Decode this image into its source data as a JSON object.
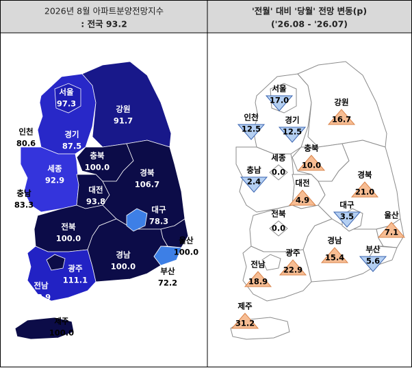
{
  "left_panel": {
    "title": "2026년 8월 아파트분양전망지수",
    "subtitle": ": 전국  93.2",
    "regions": [
      {
        "key": "gangwon",
        "name": "강원",
        "value": "91.7",
        "color": "#18188a",
        "text_color": "#ffffff"
      },
      {
        "key": "gyeonggi",
        "name": "경기",
        "value": "87.5",
        "color": "#2828c8",
        "text_color": "#ffffff"
      },
      {
        "key": "seoul",
        "name": "서울",
        "value": "97.3",
        "color": "#1e1eb4",
        "text_color": "#ffffff"
      },
      {
        "key": "incheon",
        "name": "인천",
        "value": "80.6",
        "color": "#3535d8",
        "text_color": "#000000"
      },
      {
        "key": "chungbuk",
        "name": "충북",
        "value": "100.0",
        "color": "#0c0c48",
        "text_color": "#ffffff"
      },
      {
        "key": "sejong",
        "name": "세종",
        "value": "92.9",
        "color": "#3434dc",
        "text_color": "#ffffff"
      },
      {
        "key": "chungnam",
        "name": "충남",
        "value": "83.3",
        "color": "#3434dc",
        "text_color": "#000000"
      },
      {
        "key": "daejeon",
        "name": "대전",
        "value": "93.8",
        "color": "#0c0c48",
        "text_color": "#ffffff"
      },
      {
        "key": "gyeongbuk",
        "name": "경북",
        "value": "106.7",
        "color": "#0c0c48",
        "text_color": "#ffffff"
      },
      {
        "key": "daegu",
        "name": "대구",
        "value": "78.3",
        "color": "#3d7fe6",
        "text_color": "#ffffff"
      },
      {
        "key": "jeonbuk",
        "name": "전북",
        "value": "100.0",
        "color": "#0c0c48",
        "text_color": "#ffffff"
      },
      {
        "key": "ulsan",
        "name": "울산",
        "value": "100.0",
        "color": "#0c0c48",
        "text_color": "#000000"
      },
      {
        "key": "gyeongnam",
        "name": "경남",
        "value": "100.0",
        "color": "#0c0c48",
        "text_color": "#ffffff"
      },
      {
        "key": "busan",
        "name": "부산",
        "value": "72.2",
        "color": "#3d7fe6",
        "text_color": "#000000"
      },
      {
        "key": "gwangju",
        "name": "광주",
        "value": "111.1",
        "color": "#0c0c48",
        "text_color": "#ffffff"
      },
      {
        "key": "jeonnam",
        "name": "전남",
        "value": "88.9",
        "color": "#2222c4",
        "text_color": "#ffffff"
      },
      {
        "key": "jeju",
        "name": "제주",
        "value": "100.0",
        "color": "#0c0c48",
        "text_color": "#000000"
      }
    ]
  },
  "right_panel": {
    "title": "'전월' 대비 '당월' 전망 변동(p)",
    "subtitle": "('26.08 - '26.07)",
    "regions": [
      {
        "key": "seoul",
        "name": "서울",
        "value": "17.0",
        "direction": "down"
      },
      {
        "key": "incheon",
        "name": "인천",
        "value": "12.5",
        "direction": "down"
      },
      {
        "key": "gyeonggi",
        "name": "경기",
        "value": "12.5",
        "direction": "down"
      },
      {
        "key": "gangwon",
        "name": "강원",
        "value": "16.7",
        "direction": "up"
      },
      {
        "key": "sejong",
        "name": "세종",
        "value": "0.0",
        "direction": "none"
      },
      {
        "key": "chungbuk",
        "name": "충북",
        "value": "10.0",
        "direction": "up"
      },
      {
        "key": "chungnam",
        "name": "충남",
        "value": "2.4",
        "direction": "down"
      },
      {
        "key": "daejeon",
        "name": "대전",
        "value": "4.9",
        "direction": "up"
      },
      {
        "key": "gyeongbuk",
        "name": "경북",
        "value": "21.0",
        "direction": "up"
      },
      {
        "key": "daegu",
        "name": "대구",
        "value": "3.5",
        "direction": "down"
      },
      {
        "key": "ulsan",
        "name": "울산",
        "value": "7.1",
        "direction": "up"
      },
      {
        "key": "jeonbuk",
        "name": "전북",
        "value": "0.0",
        "direction": "none"
      },
      {
        "key": "gwangju",
        "name": "광주",
        "value": "22.9",
        "direction": "up"
      },
      {
        "key": "gyeongnam",
        "name": "경남",
        "value": "15.4",
        "direction": "up"
      },
      {
        "key": "busan",
        "name": "부산",
        "value": "5.6",
        "direction": "down"
      },
      {
        "key": "jeonnam",
        "name": "전남",
        "value": "18.9",
        "direction": "up"
      },
      {
        "key": "jeju",
        "name": "제주",
        "value": "31.2",
        "direction": "up"
      }
    ]
  }
}
